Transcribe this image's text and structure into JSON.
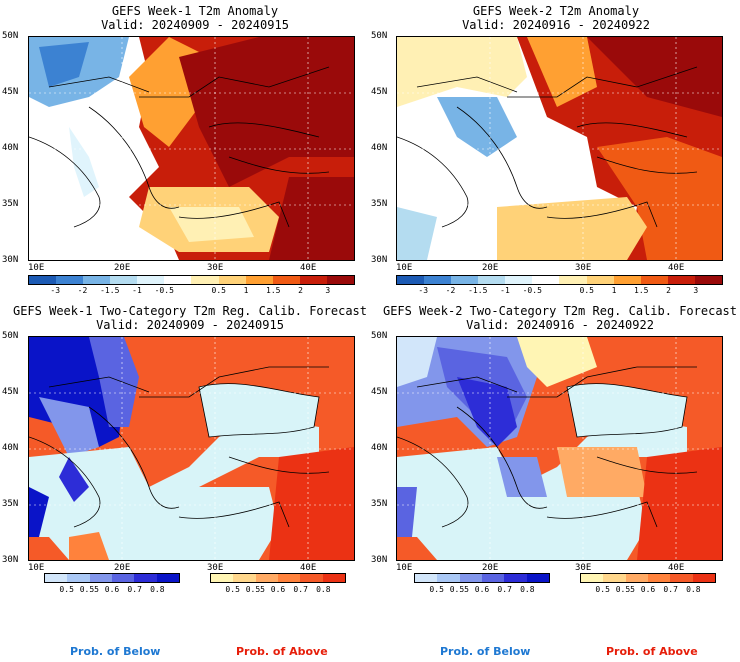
{
  "panels": [
    {
      "title1": "GEFS Week-1 T2m Anomaly",
      "title2": "Valid: 20240909 - 20240915",
      "y_labels": [
        "50N",
        "45N",
        "40N",
        "35N",
        "30N"
      ],
      "x_labels": [
        "10E",
        "20E",
        "30E",
        "40E"
      ]
    },
    {
      "title1": "GEFS Week-2 T2m Anomaly",
      "title2": "Valid: 20240916 - 20240922",
      "y_labels": [
        "50N",
        "45N",
        "40N",
        "35N",
        "30N"
      ],
      "x_labels": [
        "10E",
        "20E",
        "30E",
        "40E"
      ]
    },
    {
      "title1": "GEFS Week-1 Two-Category T2m Reg. Calib. Forecast",
      "title2": "Valid: 20240909 - 20240915",
      "y_labels": [
        "50N",
        "45N",
        "40N",
        "35N",
        "30N"
      ],
      "x_labels": [
        "10E",
        "20E",
        "30E",
        "40E"
      ]
    },
    {
      "title1": "GEFS Week-2 Two-Category T2m Reg. Calib. Forecast",
      "title2": "Valid: 20240916 - 20240922",
      "y_labels": [
        "50N",
        "45N",
        "40N",
        "35N",
        "30N"
      ],
      "x_labels": [
        "10E",
        "20E",
        "30E",
        "40E"
      ]
    }
  ],
  "anomaly_colorbar": {
    "colors": [
      "#1c5ab4",
      "#3c82d2",
      "#78b4e6",
      "#b4dcf0",
      "#e0f4fc",
      "#ffffff",
      "#fff0b4",
      "#ffd278",
      "#ffa032",
      "#f05a14",
      "#c81e0a",
      "#9a0a0a"
    ],
    "ticks": [
      "-3",
      "-2",
      "-1.5",
      "-1",
      "-0.5",
      "0.5",
      "1",
      "1.5",
      "2",
      "3"
    ]
  },
  "below_colorbar": {
    "colors": [
      "#d2e6fa",
      "#aac8f5",
      "#8296eb",
      "#5a64e1",
      "#2d2dd7",
      "#0a14c8"
    ],
    "ticks": [
      "0.5",
      "0.55",
      "0.6",
      "0.7",
      "0.8"
    ]
  },
  "above_colorbar": {
    "colors": [
      "#fff5b4",
      "#ffd78c",
      "#ffaa64",
      "#ff823c",
      "#f55a28",
      "#eb3214"
    ],
    "ticks": [
      "0.5",
      "0.55",
      "0.6",
      "0.7",
      "0.8"
    ]
  },
  "bottom_labels": {
    "left_below": "Prob. of Below",
    "left_above": "Prob. of Above",
    "right_below": "Prob. of Below",
    "right_above": "Prob. of Above",
    "below_color": "#1e78d2",
    "above_color": "#e61e0a"
  }
}
